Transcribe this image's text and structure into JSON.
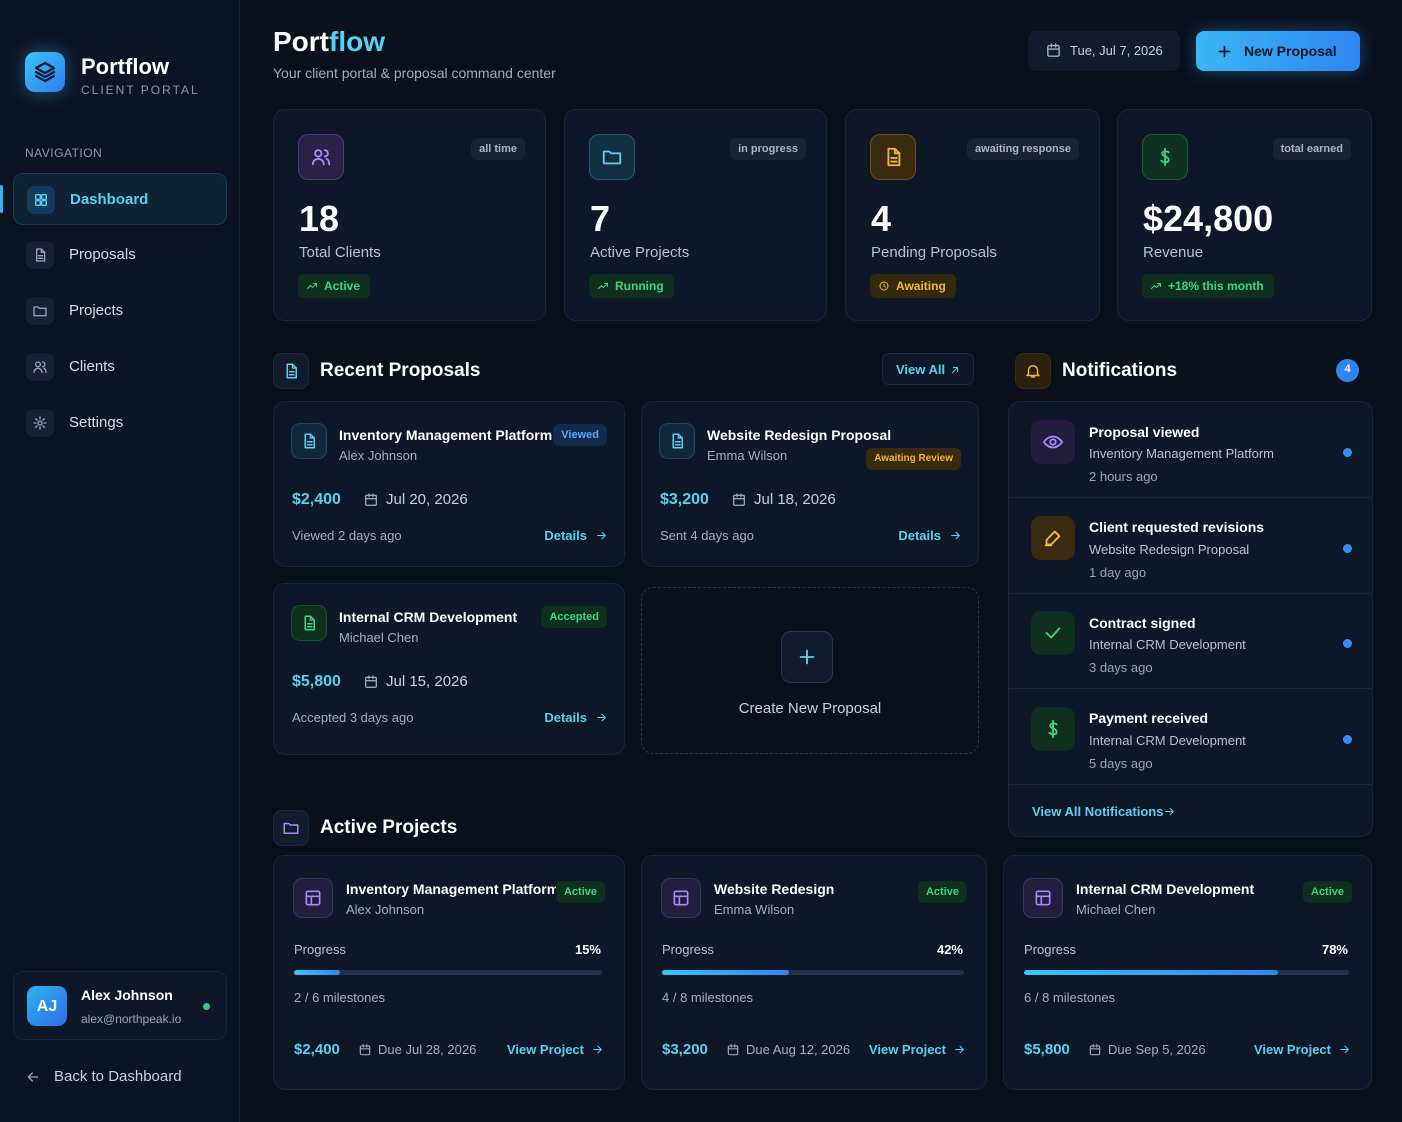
{
  "sidebar": {
    "brand": "Portflow",
    "tagline": "CLIENT PORTAL",
    "nav_heading": "NAVIGATION",
    "nav": [
      "Dashboard",
      "Proposals",
      "Projects",
      "Clients",
      "Settings"
    ],
    "user": {
      "initials": "AJ",
      "name": "Alex Johnson",
      "email": "alex@northpeak.io"
    },
    "back": "Back to Dashboard"
  },
  "header": {
    "title_a": "Port",
    "title_b": "flow",
    "subtitle": "Your client portal & proposal command center",
    "date": "Tue, Jul 7, 2026",
    "button": "New Proposal"
  },
  "stats": [
    {
      "tag": "all time",
      "value": "18",
      "label": "Total Clients",
      "badge": "Active"
    },
    {
      "tag": "in progress",
      "value": "7",
      "label": "Active Projects",
      "badge": "Running"
    },
    {
      "tag": "awaiting response",
      "value": "4",
      "label": "Pending Proposals",
      "badge": "Awaiting"
    },
    {
      "tag": "total earned",
      "value": "$24,800",
      "label": "Revenue",
      "badge": "+18% this month"
    }
  ],
  "proposals": {
    "title": "Recent Proposals",
    "view_all": "View All",
    "create": "Create New Proposal",
    "items": [
      {
        "title": "Inventory Management Platform",
        "client": "Alex Johnson",
        "status": "Viewed",
        "amount": "$2,400",
        "date": "Jul 20, 2026",
        "note": "Viewed 2 days ago",
        "link": "Details"
      },
      {
        "title": "Website Redesign Proposal",
        "client": "Emma Wilson",
        "status": "Awaiting Review",
        "amount": "$3,200",
        "date": "Jul 18, 2026",
        "note": "Sent 4 days ago",
        "link": "Details"
      },
      {
        "title": "Internal CRM Development",
        "client": "Michael Chen",
        "status": "Accepted",
        "amount": "$5,800",
        "date": "Jul 15, 2026",
        "note": "Accepted 3 days ago",
        "link": "Details"
      }
    ]
  },
  "notifications": {
    "title": "Notifications",
    "count": "4",
    "view_all": "View All Notifications",
    "items": [
      {
        "title": "Proposal viewed",
        "subject": "Inventory Management Platform",
        "time": "2 hours ago"
      },
      {
        "title": "Client requested revisions",
        "subject": "Website Redesign Proposal",
        "time": "1 day ago"
      },
      {
        "title": "Contract signed",
        "subject": "Internal CRM Development",
        "time": "3 days ago"
      },
      {
        "title": "Payment received",
        "subject": "Internal CRM Development",
        "time": "5 days ago"
      }
    ]
  },
  "projects": {
    "title": "Active Projects",
    "items": [
      {
        "title": "Inventory Management Platform",
        "client": "Alex Johnson",
        "status": "Active",
        "progress_label": "Progress",
        "progress": {
          "value": 15,
          "label": "15%"
        },
        "milestones": "2 / 6 milestones",
        "amount": "$2,400",
        "due": "Due Jul 28, 2026",
        "link": "View Project"
      },
      {
        "title": "Website Redesign",
        "client": "Emma Wilson",
        "status": "Active",
        "progress_label": "Progress",
        "progress": {
          "value": 42,
          "label": "42%"
        },
        "milestones": "4 / 8 milestones",
        "amount": "$3,200",
        "due": "Due Aug 12, 2026",
        "link": "View Project"
      },
      {
        "title": "Internal CRM Development",
        "client": "Michael Chen",
        "status": "Active",
        "progress_label": "Progress",
        "progress": {
          "value": 78,
          "label": "78%"
        },
        "milestones": "6 / 8 milestones",
        "amount": "$5,800",
        "due": "Due Sep 5, 2026",
        "link": "View Project"
      }
    ]
  }
}
